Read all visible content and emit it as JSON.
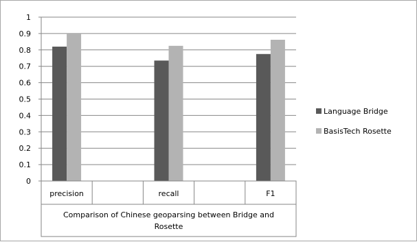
{
  "chart_data": {
    "type": "bar",
    "categories": [
      "precision",
      "",
      "recall",
      "",
      "F1"
    ],
    "series": [
      {
        "name": "Language Bridge",
        "color": "#595959",
        "values": [
          0.82,
          null,
          0.735,
          null,
          0.775
        ]
      },
      {
        "name": "BasisTech Rosette",
        "color": "#b3b3b3",
        "values": [
          0.9,
          null,
          0.825,
          null,
          0.862
        ]
      }
    ],
    "xlabel_lines": [
      "Comparison of Chinese geoparsing between Bridge and",
      "Rosette"
    ],
    "ylim": [
      0,
      1
    ],
    "yticks": [
      "0",
      "0.1",
      "0.2",
      "0.3",
      "0.4",
      "0.5",
      "0.6",
      "0.7",
      "0.8",
      "0.9",
      "1"
    ],
    "grid": "horizontal",
    "legend_position": "right"
  }
}
